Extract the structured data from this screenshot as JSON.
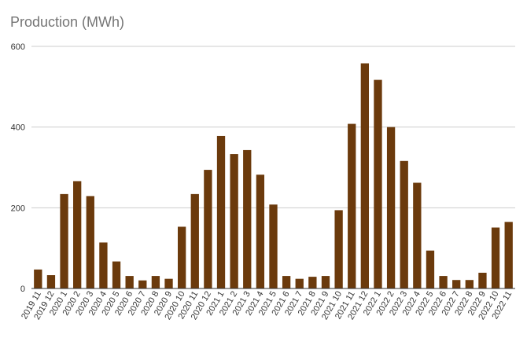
{
  "chart_data": {
    "type": "bar",
    "title": "Production (MWh)",
    "xlabel": "",
    "ylabel": "",
    "ylim": [
      0,
      600
    ],
    "yticks": [
      0,
      200,
      400,
      600
    ],
    "grid": true,
    "bar_color": "#6b3a0c",
    "grid_color": "#cccccc",
    "axis_color": "#333333",
    "categories": [
      "2019 11",
      "2019 12",
      "2020 1",
      "2020 2",
      "2020 3",
      "2020 4",
      "2020 5",
      "2020 6",
      "2020 7",
      "2020 8",
      "2020 9",
      "2020 10",
      "2020 11",
      "2020 12",
      "2021 1",
      "2021 2",
      "2021 3",
      "2021 4",
      "2021 5",
      "2021 6",
      "2021 7",
      "2021 8",
      "2021 9",
      "2021 10",
      "2021 11",
      "2021 12",
      "2022 1",
      "2022 2",
      "2022 3",
      "2022 4",
      "2022 5",
      "2022 6",
      "2022 7",
      "2022 8",
      "2022 9",
      "2022 10",
      "2022 11"
    ],
    "values": [
      47,
      33,
      234,
      266,
      229,
      114,
      67,
      31,
      20,
      31,
      24,
      153,
      234,
      294,
      378,
      333,
      343,
      282,
      208,
      31,
      24,
      29,
      31,
      194,
      408,
      558,
      517,
      400,
      316,
      262,
      94,
      31,
      21,
      21,
      39,
      151,
      165
    ]
  }
}
